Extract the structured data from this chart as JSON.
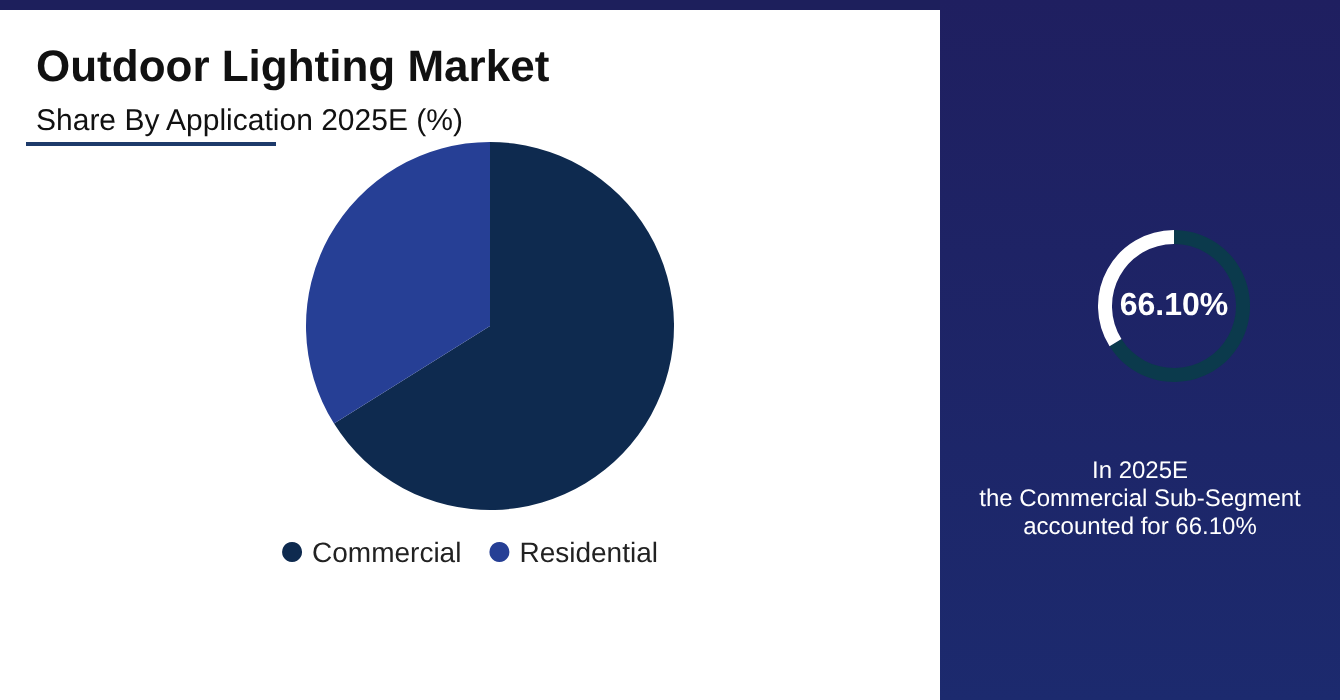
{
  "chart_data": [
    {
      "type": "pie",
      "title": "Outdoor Lighting Market",
      "subtitle": "Share By Application 2025E (%)",
      "categories": [
        "Commercial",
        "Residential"
      ],
      "values": [
        66.1,
        33.9
      ],
      "colors": [
        "#0e2a4f",
        "#263f95"
      ],
      "legend": "bottom"
    },
    {
      "type": "donut",
      "categories": [
        null,
        null
      ],
      "values": [
        66.1,
        33.9
      ],
      "colors": [
        "#0b3a4c",
        "#ffffff"
      ],
      "legend": false,
      "annotations": [
        "66.10%",
        "In 2025E\nthe Commercial Sub-Segment\naccounted for 66.10%"
      ]
    }
  ]
}
